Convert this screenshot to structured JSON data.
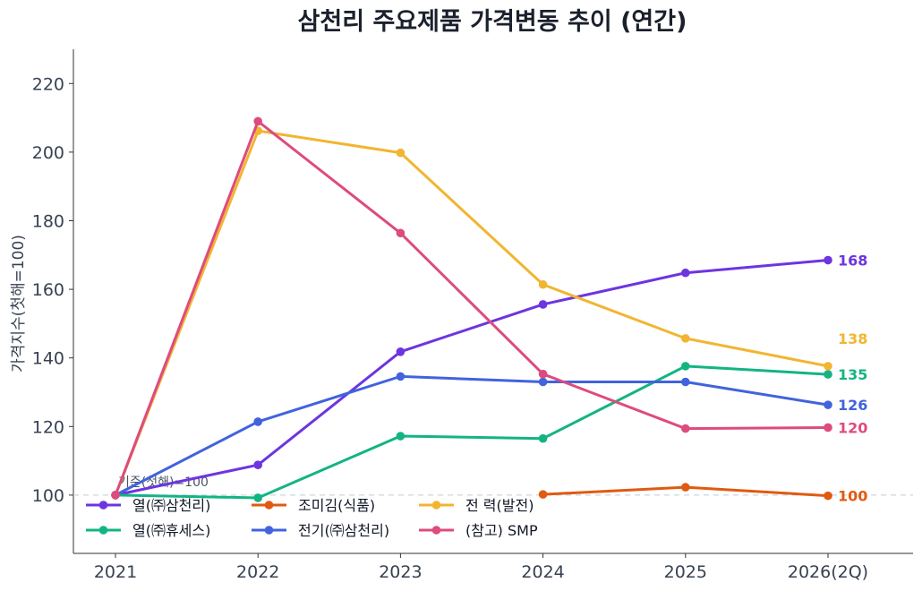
{
  "chart_data": {
    "type": "line",
    "title": "삼천리 주요제품 가격변동 추이 (연간)",
    "xlabel": "",
    "ylabel": "가격지수(첫해=100)",
    "categories": [
      "2021",
      "2022",
      "2023",
      "2024",
      "2025",
      "2026(2Q)"
    ],
    "ylim": [
      83,
      230
    ],
    "yticks": [
      100,
      120,
      140,
      160,
      180,
      200,
      220
    ],
    "grid": false,
    "legend_position": "lower-left",
    "reference_line": {
      "value": 100,
      "label": "기준(첫해)=100"
    },
    "series": [
      {
        "name": "열(㈜삼천리)",
        "color": "#6d35e0",
        "values": [
          100,
          108.8,
          141.8,
          155.6,
          164.8,
          168.5
        ],
        "end_label": "168"
      },
      {
        "name": "열(㈜휴세스)",
        "color": "#13b483",
        "values": [
          100,
          99.2,
          117.2,
          116.5,
          137.6,
          135.2
        ],
        "end_label": "135"
      },
      {
        "name": "조미김(식품)",
        "color": "#e05a10",
        "values": [
          null,
          null,
          null,
          100.2,
          102.3,
          99.8
        ],
        "end_label": "100"
      },
      {
        "name": "전기(㈜삼천리)",
        "color": "#4163dd",
        "values": [
          100,
          121.4,
          134.6,
          133.0,
          133.0,
          126.3
        ],
        "end_label": "126"
      },
      {
        "name": "전 력(발전)",
        "color": "#f2b531",
        "values": [
          100,
          206.2,
          199.8,
          161.4,
          145.7,
          137.6
        ],
        "end_label": "138"
      },
      {
        "name": "(참고) SMP",
        "color": "#de4b7e",
        "values": [
          100,
          209.0,
          176.4,
          135.3,
          119.4,
          119.7
        ],
        "end_label": "120"
      }
    ]
  }
}
